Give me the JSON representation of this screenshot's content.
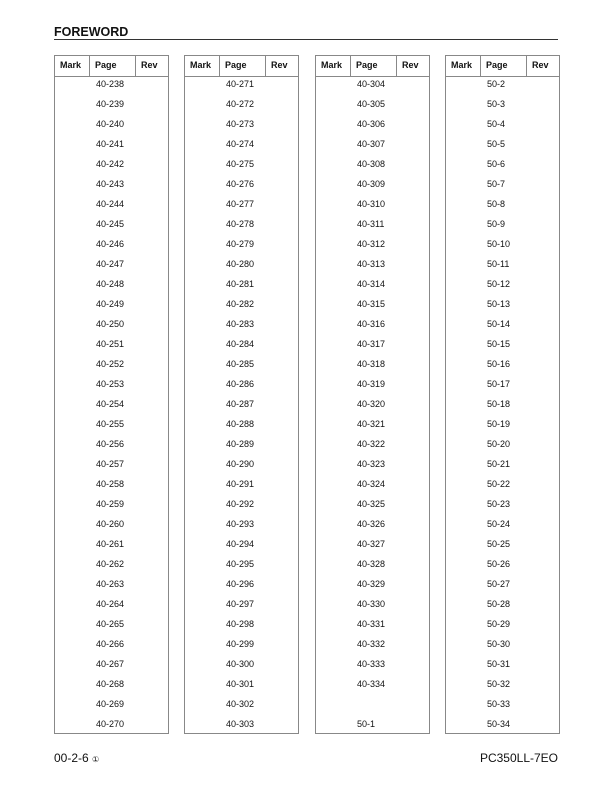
{
  "header": {
    "title": "FOREWORD"
  },
  "columns": {
    "mark": "Mark",
    "page": "Page",
    "rev": "Rev"
  },
  "tables": [
    {
      "pages": [
        "40-238",
        "40-239",
        "40-240",
        "40-241",
        "40-242",
        "40-243",
        "40-244",
        "40-245",
        "40-246",
        "40-247",
        "40-248",
        "40-249",
        "40-250",
        "40-251",
        "40-252",
        "40-253",
        "40-254",
        "40-255",
        "40-256",
        "40-257",
        "40-258",
        "40-259",
        "40-260",
        "40-261",
        "40-262",
        "40-263",
        "40-264",
        "40-265",
        "40-266",
        "40-267",
        "40-268",
        "40-269",
        "40-270"
      ]
    },
    {
      "pages": [
        "40-271",
        "40-272",
        "40-273",
        "40-274",
        "40-275",
        "40-276",
        "40-277",
        "40-278",
        "40-279",
        "40-280",
        "40-281",
        "40-282",
        "40-283",
        "40-284",
        "40-285",
        "40-286",
        "40-287",
        "40-288",
        "40-289",
        "40-290",
        "40-291",
        "40-292",
        "40-293",
        "40-294",
        "40-295",
        "40-296",
        "40-297",
        "40-298",
        "40-299",
        "40-300",
        "40-301",
        "40-302",
        "40-303"
      ]
    },
    {
      "pages": [
        "40-304",
        "40-305",
        "40-306",
        "40-307",
        "40-308",
        "40-309",
        "40-310",
        "40-311",
        "40-312",
        "40-313",
        "40-314",
        "40-315",
        "40-316",
        "40-317",
        "40-318",
        "40-319",
        "40-320",
        "40-321",
        "40-322",
        "40-323",
        "40-324",
        "40-325",
        "40-326",
        "40-327",
        "40-328",
        "40-329",
        "40-330",
        "40-331",
        "40-332",
        "40-333",
        "40-334",
        "",
        "50-1"
      ]
    },
    {
      "pages": [
        "50-2",
        "50-3",
        "50-4",
        "50-5",
        "50-6",
        "50-7",
        "50-8",
        "50-9",
        "50-10",
        "50-11",
        "50-12",
        "50-13",
        "50-14",
        "50-15",
        "50-16",
        "50-17",
        "50-18",
        "50-19",
        "50-20",
        "50-21",
        "50-22",
        "50-23",
        "50-24",
        "50-25",
        "50-26",
        "50-27",
        "50-28",
        "50-29",
        "50-30",
        "50-31",
        "50-32",
        "50-33",
        "50-34"
      ]
    }
  ],
  "footer": {
    "page_number": "00-2-6",
    "revision_mark": "①",
    "model": "PC350LL-7EO"
  }
}
